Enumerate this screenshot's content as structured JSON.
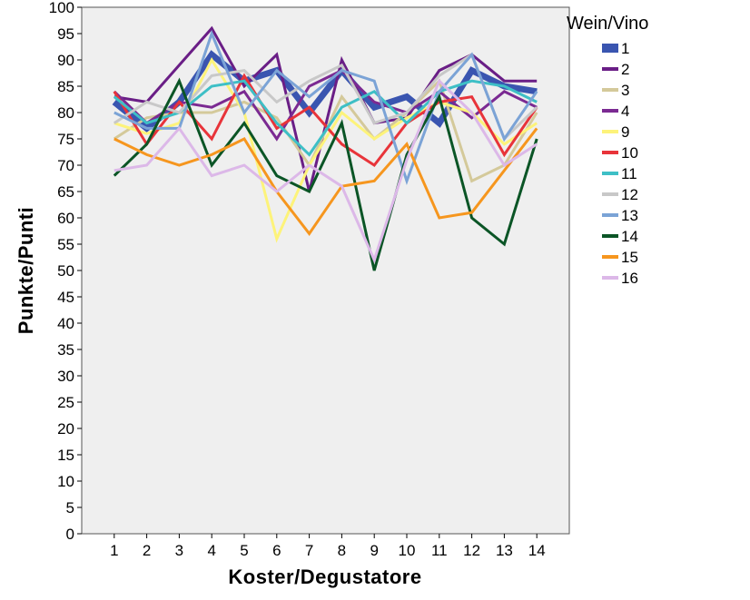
{
  "chart_data": {
    "type": "line",
    "xlabel": "Koster/Degustatore",
    "ylabel": "Punkte/Punti",
    "legend_title": "Wein/Vino",
    "legend_position": "right",
    "grid": false,
    "background": "#efefef",
    "xlim": [
      0,
      15
    ],
    "ylim": [
      0,
      100
    ],
    "x": [
      1,
      2,
      3,
      4,
      5,
      6,
      7,
      8,
      9,
      10,
      11,
      12,
      13,
      14
    ],
    "x_ticks": [
      "1",
      "2",
      "3",
      "4",
      "5",
      "6",
      "7",
      "8",
      "9",
      "10",
      "11",
      "12",
      "13",
      "14"
    ],
    "y_ticks": [
      "0",
      "5",
      "10",
      "15",
      "20",
      "25",
      "30",
      "35",
      "40",
      "45",
      "50",
      "55",
      "60",
      "65",
      "70",
      "75",
      "80",
      "85",
      "90",
      "95",
      "100"
    ],
    "series": [
      {
        "name": "1",
        "color": "#3a55b0",
        "values": [
          82,
          77,
          82,
          91,
          86,
          88,
          80,
          88,
          81,
          83,
          78,
          88,
          85,
          84
        ]
      },
      {
        "name": "2",
        "color": "#6a1e86",
        "values": [
          83,
          82,
          89,
          96,
          85,
          91,
          65,
          90,
          78,
          79,
          88,
          91,
          86,
          86
        ]
      },
      {
        "name": "3",
        "color": "#d4c99a",
        "values": [
          75,
          79,
          80,
          80,
          82,
          79,
          70,
          83,
          75,
          80,
          86,
          67,
          70,
          80
        ]
      },
      {
        "name": "4",
        "color": "#7b2a92",
        "values": [
          84,
          78,
          82,
          81,
          84,
          75,
          85,
          88,
          82,
          80,
          84,
          79,
          84,
          81
        ]
      },
      {
        "name": "9",
        "color": "#fdf37a",
        "values": [
          78,
          76,
          78,
          90,
          80,
          56,
          70,
          80,
          75,
          79,
          82,
          80,
          74,
          78
        ]
      },
      {
        "name": "10",
        "color": "#e8343a",
        "values": [
          84,
          74,
          82,
          75,
          87,
          77,
          81,
          74,
          70,
          78,
          82,
          83,
          72,
          81
        ]
      },
      {
        "name": "11",
        "color": "#3ebfc6",
        "values": [
          83,
          78,
          80,
          85,
          86,
          78,
          72,
          81,
          84,
          78,
          84,
          86,
          85,
          82
        ]
      },
      {
        "name": "12",
        "color": "#c8c8c8",
        "values": [
          78,
          82,
          80,
          87,
          88,
          82,
          86,
          89,
          78,
          80,
          87,
          91,
          75,
          81
        ]
      },
      {
        "name": "13",
        "color": "#7ba3d6",
        "values": [
          80,
          77,
          77,
          95,
          80,
          88,
          83,
          88,
          86,
          67,
          84,
          91,
          75,
          84
        ]
      },
      {
        "name": "14",
        "color": "#0b5526",
        "values": [
          68,
          74,
          86,
          70,
          78,
          68,
          65,
          78,
          50,
          72,
          83,
          60,
          55,
          75
        ]
      },
      {
        "name": "15",
        "color": "#f6961e",
        "values": [
          75,
          72,
          70,
          72,
          75,
          65,
          57,
          66,
          67,
          74,
          60,
          61,
          69,
          77
        ]
      },
      {
        "name": "16",
        "color": "#dcb8e8",
        "values": [
          69,
          70,
          77,
          68,
          70,
          65,
          70,
          66,
          52,
          71,
          86,
          80,
          70,
          74
        ]
      }
    ]
  }
}
